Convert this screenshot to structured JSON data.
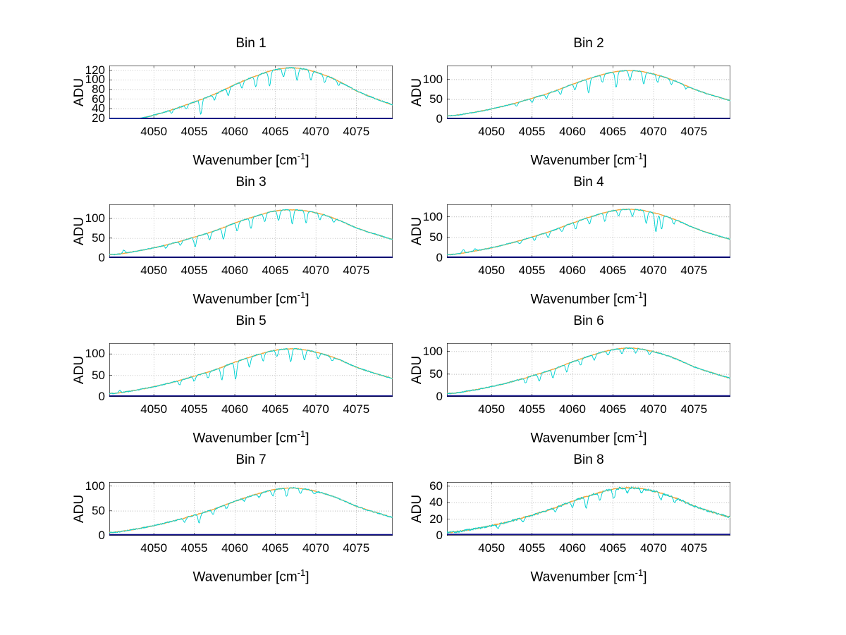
{
  "figure": {
    "background": "#ffffff"
  },
  "axis_labels": {
    "y": "ADU",
    "x_base": "Wavenumber [cm",
    "x_sup": "-1",
    "x_close": "]"
  },
  "colors": {
    "smooth": "#f0a63c",
    "measured": "#00d2d2",
    "baseline": "#10108a",
    "axis": "#000000",
    "grid": "#777777",
    "text": "#000000"
  },
  "chart_data": [
    {
      "type": "line",
      "title": "Bin 1",
      "ylabel": "ADU",
      "xlabel": "Wavenumber [cm^-1]",
      "grid": true,
      "xlim": [
        4044.5,
        4079.5
      ],
      "ylim": [
        18,
        130
      ],
      "xticks": [
        4050,
        4055,
        4060,
        4065,
        4070,
        4075
      ],
      "yticks": [
        20,
        40,
        60,
        80,
        100,
        120
      ],
      "baseline": 2,
      "envelope_x": [
        4045,
        4047.5,
        4050,
        4052.5,
        4055,
        4057.5,
        4060,
        4062.5,
        4065,
        4067.5,
        4070,
        4072.5,
        4075,
        4077.5,
        4080
      ],
      "envelope_y": [
        8.8,
        16.3,
        26.3,
        38.8,
        53.8,
        70.0,
        90.0,
        107.5,
        121.3,
        125.0,
        116.3,
        100.0,
        77.5,
        60.0,
        46.3
      ],
      "dips": [
        [
          4052.2,
          6
        ],
        [
          4054.0,
          9
        ],
        [
          4055.8,
          30
        ],
        [
          4057.5,
          12
        ],
        [
          4059.2,
          16
        ],
        [
          4060.9,
          14
        ],
        [
          4062.6,
          22
        ],
        [
          4064.3,
          30
        ],
        [
          4066.0,
          18
        ],
        [
          4067.7,
          26
        ],
        [
          4069.4,
          20
        ],
        [
          4071.1,
          16
        ],
        [
          4072.8,
          10
        ]
      ]
    },
    {
      "type": "line",
      "title": "Bin 2",
      "ylabel": "ADU",
      "xlabel": "Wavenumber [cm^-1]",
      "grid": true,
      "xlim": [
        4044.5,
        4079.5
      ],
      "ylim": [
        0,
        135
      ],
      "xticks": [
        4050,
        4055,
        4060,
        4065,
        4070,
        4075
      ],
      "yticks": [
        0,
        50,
        100
      ],
      "baseline": 2,
      "envelope_x": [
        4045,
        4047.5,
        4050,
        4052.5,
        4055,
        4057.5,
        4060,
        4062.5,
        4065,
        4067.5,
        4070,
        4072.5,
        4075,
        4077.5,
        4080
      ],
      "envelope_y": [
        8.5,
        15.9,
        25.6,
        37.8,
        52.5,
        68.3,
        87.8,
        104.9,
        118.3,
        122.0,
        113.5,
        97.6,
        75.6,
        58.6,
        45.1
      ],
      "dips": [
        [
          4053.1,
          8
        ],
        [
          4055.0,
          10
        ],
        [
          4056.8,
          12
        ],
        [
          4058.5,
          14
        ],
        [
          4060.3,
          16
        ],
        [
          4062.0,
          35
        ],
        [
          4063.7,
          20
        ],
        [
          4065.4,
          40
        ],
        [
          4067.1,
          25
        ],
        [
          4068.8,
          30
        ],
        [
          4070.5,
          18
        ],
        [
          4072.2,
          12
        ],
        [
          4074.0,
          8
        ]
      ]
    },
    {
      "type": "line",
      "title": "Bin 3",
      "ylabel": "ADU",
      "xlabel": "Wavenumber [cm^-1]",
      "grid": true,
      "xlim": [
        4044.5,
        4079.5
      ],
      "ylim": [
        0,
        135
      ],
      "xticks": [
        4050,
        4055,
        4060,
        4065,
        4070,
        4075
      ],
      "yticks": [
        0,
        50,
        100
      ],
      "baseline": 2,
      "envelope_x": [
        4045,
        4047.5,
        4050,
        4052.5,
        4055,
        4057.5,
        4060,
        4062.5,
        4065,
        4067.5,
        4070,
        4072.5,
        4075,
        4077.5,
        4080
      ],
      "envelope_y": [
        8.5,
        15.9,
        25.6,
        37.8,
        52.5,
        68.3,
        87.8,
        104.9,
        118.3,
        121.0,
        114.0,
        98.0,
        76.0,
        59.0,
        45.0
      ],
      "dips": [
        [
          4046.3,
          -8
        ],
        [
          4051.5,
          8
        ],
        [
          4053.3,
          10
        ],
        [
          4055.1,
          25
        ],
        [
          4056.9,
          18
        ],
        [
          4058.6,
          30
        ],
        [
          4060.3,
          22
        ],
        [
          4062.0,
          28
        ],
        [
          4063.7,
          20
        ],
        [
          4065.4,
          25
        ],
        [
          4067.1,
          35
        ],
        [
          4068.8,
          30
        ],
        [
          4070.5,
          15
        ],
        [
          4072.2,
          10
        ]
      ]
    },
    {
      "type": "line",
      "title": "Bin 4",
      "ylabel": "ADU",
      "xlabel": "Wavenumber [cm^-1]",
      "grid": true,
      "xlim": [
        4044.5,
        4079.5
      ],
      "ylim": [
        0,
        130
      ],
      "xticks": [
        4050,
        4055,
        4060,
        4065,
        4070,
        4075
      ],
      "yticks": [
        0,
        50,
        100
      ],
      "baseline": 2,
      "envelope_x": [
        4045,
        4047.5,
        4050,
        4052.5,
        4055,
        4057.5,
        4060,
        4062.5,
        4065,
        4067.5,
        4070,
        4072.5,
        4075,
        4077.5,
        4080
      ],
      "envelope_y": [
        8.3,
        15.3,
        24.8,
        36.6,
        50.7,
        66.1,
        85.0,
        101.5,
        114.5,
        118.0,
        109.7,
        94.4,
        73.2,
        56.6,
        43.7
      ],
      "dips": [
        [
          4046.5,
          -9
        ],
        [
          4048.0,
          -5
        ],
        [
          4053.5,
          8
        ],
        [
          4055.3,
          10
        ],
        [
          4057.0,
          14
        ],
        [
          4058.7,
          12
        ],
        [
          4060.4,
          18
        ],
        [
          4062.1,
          16
        ],
        [
          4064.0,
          22
        ],
        [
          4065.7,
          14
        ],
        [
          4067.4,
          18
        ],
        [
          4069.1,
          30
        ],
        [
          4070.3,
          45
        ],
        [
          4071.0,
          35
        ],
        [
          4072.5,
          12
        ]
      ]
    },
    {
      "type": "line",
      "title": "Bin 5",
      "ylabel": "ADU",
      "xlabel": "Wavenumber [cm^-1]",
      "grid": true,
      "xlim": [
        4044.5,
        4079.5
      ],
      "ylim": [
        0,
        125
      ],
      "xticks": [
        4050,
        4055,
        4060,
        4065,
        4070,
        4075
      ],
      "yticks": [
        0,
        50,
        100
      ],
      "baseline": 2,
      "envelope_x": [
        4045,
        4047.5,
        4050,
        4052.5,
        4055,
        4057.5,
        4060,
        4062.5,
        4065,
        4067.5,
        4070,
        4072.5,
        4075,
        4077.5,
        4080
      ],
      "envelope_y": [
        7.8,
        14.6,
        23.5,
        34.7,
        48.2,
        62.7,
        80.6,
        96.3,
        108.6,
        112.0,
        104.2,
        89.6,
        69.4,
        53.8,
        41.4
      ],
      "dips": [
        [
          4045.8,
          -5
        ],
        [
          4053.2,
          10
        ],
        [
          4055.0,
          12
        ],
        [
          4056.7,
          14
        ],
        [
          4058.4,
          30
        ],
        [
          4060.1,
          40
        ],
        [
          4061.8,
          22
        ],
        [
          4063.5,
          18
        ],
        [
          4065.2,
          16
        ],
        [
          4066.9,
          30
        ],
        [
          4068.6,
          24
        ],
        [
          4070.3,
          14
        ],
        [
          4072.0,
          10
        ]
      ]
    },
    {
      "type": "line",
      "title": "Bin 6",
      "ylabel": "ADU",
      "xlabel": "Wavenumber [cm^-1]",
      "grid": true,
      "xlim": [
        4044.5,
        4079.5
      ],
      "ylim": [
        0,
        118
      ],
      "xticks": [
        4050,
        4055,
        4060,
        4065,
        4070,
        4075
      ],
      "yticks": [
        0,
        50,
        100
      ],
      "baseline": 2,
      "envelope_x": [
        4045,
        4047.5,
        4050,
        4052.5,
        4055,
        4057.5,
        4060,
        4062.5,
        4065,
        4067.5,
        4070,
        4072.5,
        4075,
        4077.5,
        4080
      ],
      "envelope_y": [
        7.5,
        13.9,
        22.5,
        33.2,
        46.0,
        59.9,
        77.0,
        92.0,
        103.8,
        107.0,
        99.5,
        85.6,
        66.3,
        51.4,
        39.6
      ],
      "dips": [
        [
          4054.2,
          12
        ],
        [
          4055.9,
          16
        ],
        [
          4057.6,
          20
        ],
        [
          4059.3,
          18
        ],
        [
          4061.0,
          14
        ],
        [
          4062.7,
          12
        ],
        [
          4064.4,
          10
        ],
        [
          4066.1,
          12
        ],
        [
          4067.8,
          10
        ],
        [
          4069.5,
          8
        ]
      ]
    },
    {
      "type": "line",
      "title": "Bin 7",
      "ylabel": "ADU",
      "xlabel": "Wavenumber [cm^-1]",
      "grid": true,
      "xlim": [
        4044.5,
        4079.5
      ],
      "ylim": [
        0,
        108
      ],
      "xticks": [
        4050,
        4055,
        4060,
        4065,
        4070,
        4075
      ],
      "yticks": [
        0,
        50,
        100
      ],
      "baseline": 2,
      "envelope_x": [
        4045,
        4047.5,
        4050,
        4052.5,
        4055,
        4057.5,
        4060,
        4062.5,
        4065,
        4067.5,
        4070,
        4072.5,
        4075,
        4077.5,
        4080
      ],
      "envelope_y": [
        6.7,
        12.5,
        20.2,
        29.8,
        41.3,
        53.8,
        69.1,
        82.6,
        93.1,
        96.0,
        89.3,
        76.8,
        59.5,
        46.1,
        35.5
      ],
      "dips": [
        [
          4053.8,
          8
        ],
        [
          4055.6,
          18
        ],
        [
          4057.3,
          10
        ],
        [
          4059.0,
          8
        ],
        [
          4061.2,
          6
        ],
        [
          4063.0,
          8
        ],
        [
          4064.7,
          12
        ],
        [
          4066.4,
          16
        ],
        [
          4068.1,
          10
        ],
        [
          4069.8,
          6
        ]
      ]
    },
    {
      "type": "line",
      "title": "Bin 8",
      "ylabel": "ADU",
      "xlabel": "Wavenumber [cm^-1]",
      "grid": true,
      "xlim": [
        4044.5,
        4079.5
      ],
      "ylim": [
        0,
        65
      ],
      "xticks": [
        4050,
        4055,
        4060,
        4065,
        4070,
        4075
      ],
      "yticks": [
        0,
        20,
        40,
        60
      ],
      "baseline": 1.5,
      "envelope_x": [
        4045,
        4047.5,
        4050,
        4052.5,
        4055,
        4057.5,
        4060,
        4062.5,
        4065,
        4067.5,
        4070,
        4072.5,
        4075,
        4077.5,
        4080
      ],
      "envelope_y": [
        4.1,
        7.5,
        12.2,
        18.0,
        24.9,
        32.5,
        41.8,
        49.9,
        56.3,
        58.0,
        53.9,
        46.4,
        36.0,
        27.8,
        21.5
      ],
      "dips": [
        [
          4050.8,
          6
        ],
        [
          4053.9,
          5
        ],
        [
          4057.9,
          4
        ],
        [
          4060.0,
          8
        ],
        [
          4061.7,
          14
        ],
        [
          4063.4,
          10
        ],
        [
          4065.1,
          12
        ],
        [
          4066.8,
          6
        ],
        [
          4068.5,
          5
        ],
        [
          4070.9,
          8
        ],
        [
          4072.6,
          6
        ]
      ]
    }
  ],
  "layout_note": "4 rows x 2 columns of spectra subplots"
}
